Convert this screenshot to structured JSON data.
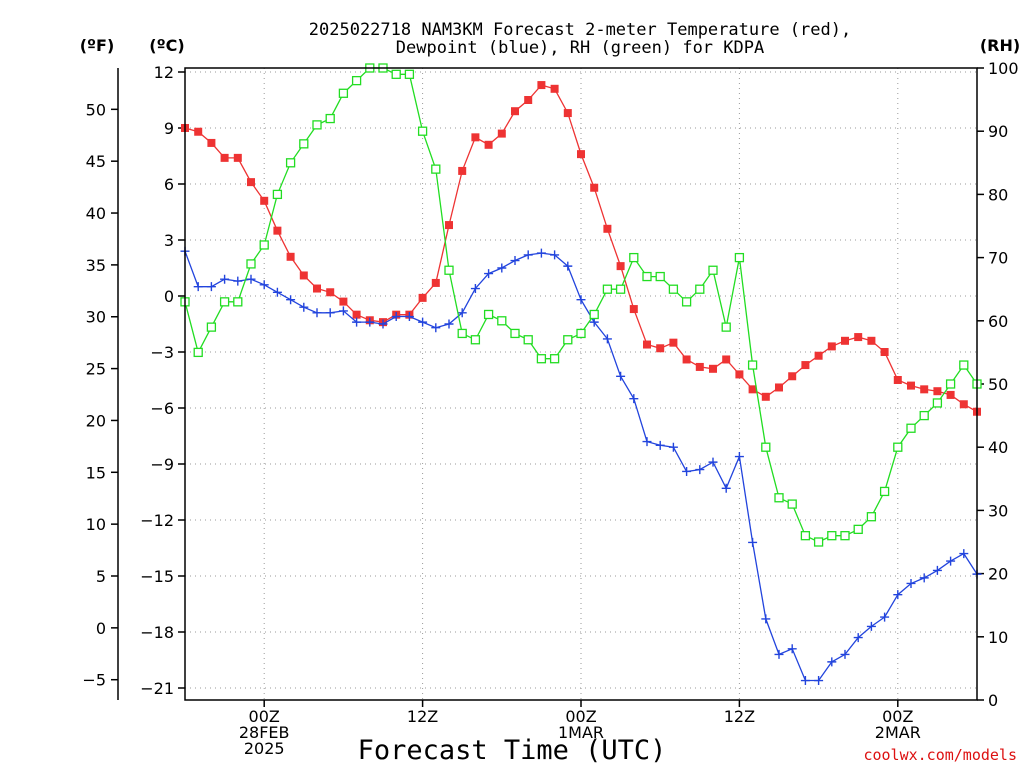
{
  "chart_data": {
    "type": "line",
    "title_line1": "2025022718 NAM3KM Forecast 2-meter Temperature (red),",
    "title_line2": "Dewpoint (blue), RH (green) for KDPA",
    "unit_f": "(ºF)",
    "unit_c": "(ºC)",
    "unit_rh": "(RH)",
    "xlabel": "Forecast Time (UTC)",
    "credit": "coolwx.com/models",
    "x_hours": [
      0,
      1,
      2,
      3,
      4,
      5,
      6,
      7,
      8,
      9,
      10,
      11,
      12,
      13,
      14,
      15,
      16,
      17,
      18,
      19,
      20,
      21,
      22,
      23,
      24,
      25,
      26,
      27,
      28,
      29,
      30,
      31,
      32,
      33,
      34,
      35,
      36,
      37,
      38,
      39,
      40,
      41,
      42,
      43,
      44,
      45,
      46,
      47,
      48,
      49,
      50,
      51,
      52,
      53,
      54,
      55,
      56,
      57,
      58,
      59,
      60
    ],
    "x_ticks": [
      {
        "hour": 6,
        "lines": [
          "00Z",
          "28FEB",
          "2025"
        ]
      },
      {
        "hour": 18,
        "lines": [
          "12Z",
          "",
          ""
        ]
      },
      {
        "hour": 30,
        "lines": [
          "00Z",
          "1MAR",
          ""
        ]
      },
      {
        "hour": 42,
        "lines": [
          "12Z",
          "",
          ""
        ]
      },
      {
        "hour": 54,
        "lines": [
          "00Z",
          "2MAR",
          ""
        ]
      }
    ],
    "x_range": [
      0,
      60
    ],
    "y_celsius_range": [
      -21,
      12.5
    ],
    "y_celsius_ticks": [
      "12",
      "9",
      "6",
      "3",
      "0",
      "−3",
      "−6",
      "−9",
      "−12",
      "−15",
      "−18",
      "−21"
    ],
    "y_fahrenheit_ticks": [
      "50",
      "45",
      "40",
      "35",
      "30",
      "25",
      "20",
      "15",
      "10",
      "5",
      "0",
      "−5"
    ],
    "y_rh_range": [
      0,
      100
    ],
    "y_rh_ticks": [
      "100",
      "90",
      "80",
      "70",
      "60",
      "50",
      "40",
      "30",
      "20",
      "10",
      "0"
    ],
    "grid": true,
    "series": [
      {
        "name": "2-meter Temperature (red)",
        "color": "#ee3333",
        "marker": "filled-square",
        "axis": "celsius",
        "values": [
          9.0,
          8.8,
          8.2,
          7.4,
          7.4,
          6.1,
          5.1,
          3.5,
          2.1,
          1.1,
          0.4,
          0.2,
          -0.3,
          -1.0,
          -1.3,
          -1.4,
          -1.0,
          -1.0,
          -0.1,
          0.7,
          3.8,
          6.7,
          8.5,
          8.1,
          8.7,
          9.9,
          10.5,
          11.3,
          11.1,
          9.8,
          7.6,
          5.8,
          3.6,
          1.6,
          -0.7,
          -2.6,
          -2.8,
          -2.5,
          -3.4,
          -3.8,
          -3.9,
          -3.4,
          -4.2,
          -5.0,
          -5.4,
          -4.9,
          -4.3,
          -3.7,
          -3.2,
          -2.7,
          -2.4,
          -2.2,
          -2.4,
          -3.0,
          -4.5,
          -4.8,
          -5.0,
          -5.1,
          -5.3,
          -5.8,
          -6.2
        ]
      },
      {
        "name": "Dewpoint (blue)",
        "color": "#2244dd",
        "marker": "plus",
        "axis": "celsius",
        "values": [
          2.4,
          0.5,
          0.5,
          0.9,
          0.8,
          0.9,
          0.6,
          0.2,
          -0.2,
          -0.6,
          -0.9,
          -0.9,
          -0.8,
          -1.4,
          -1.4,
          -1.5,
          -1.1,
          -1.1,
          -1.4,
          -1.7,
          -1.5,
          -0.9,
          0.4,
          1.2,
          1.5,
          1.9,
          2.2,
          2.3,
          2.2,
          1.6,
          -0.2,
          -1.4,
          -2.3,
          -4.3,
          -5.5,
          -7.8,
          -8.0,
          -8.1,
          -9.4,
          -9.3,
          -8.9,
          -10.3,
          -8.6,
          -13.2,
          -17.3,
          -19.2,
          -18.9,
          -20.6,
          -20.6,
          -19.6,
          -19.2,
          -18.3,
          -17.7,
          -17.2,
          -16.0,
          -15.4,
          -15.1,
          -14.7,
          -14.2,
          -13.8,
          -14.9
        ]
      },
      {
        "name": "RH (green)",
        "color": "#22dd22",
        "marker": "open-square",
        "axis": "rh",
        "values": [
          63,
          55,
          59,
          63,
          63,
          69,
          72,
          80,
          85,
          88,
          91,
          92,
          96,
          98,
          100,
          100,
          99,
          99,
          90,
          84,
          68,
          58,
          57,
          61,
          60,
          58,
          57,
          54,
          54,
          57,
          58,
          61,
          65,
          65,
          70,
          67,
          67,
          65,
          63,
          65,
          68,
          59,
          70,
          53,
          40,
          32,
          31,
          26,
          25,
          26,
          26,
          27,
          29,
          33,
          40,
          43,
          45,
          47,
          50,
          53,
          50
        ]
      }
    ]
  }
}
